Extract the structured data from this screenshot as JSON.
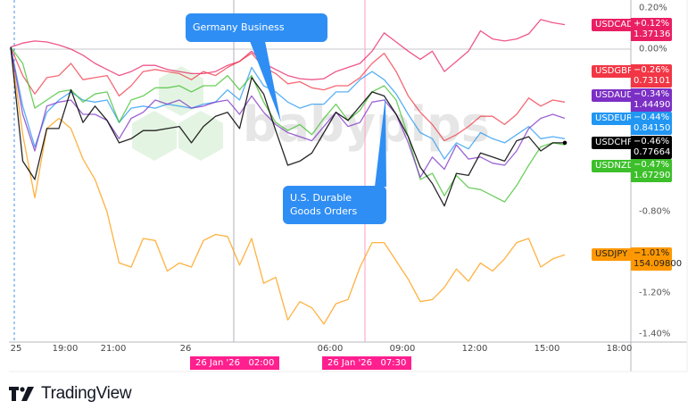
{
  "chart_data": {
    "type": "line",
    "title": "",
    "xlabel": "",
    "ylabel": "",
    "y_unit": "%",
    "ylim": [
      -1.48,
      0.24
    ],
    "grid": false,
    "y_ticks": [
      "0.20%",
      "0.00%",
      "-0.80%",
      "-1.20%",
      "-1.40%"
    ],
    "x_ticks": [
      "25",
      "19:00",
      "21:00",
      "26",
      "06:00",
      "09:00",
      "12:00",
      "15:00",
      "18:00"
    ],
    "x": [
      "16:45",
      "17:15",
      "17:45",
      "18:15",
      "18:45",
      "19:15",
      "19:45",
      "20:15",
      "20:45",
      "21:15",
      "21:45",
      "22:15",
      "22:45",
      "23:15",
      "23:45",
      "00:15",
      "00:45",
      "01:15",
      "01:45",
      "02:15",
      "02:45",
      "03:15",
      "03:45",
      "04:15",
      "04:45",
      "05:15",
      "05:45",
      "06:15",
      "06:45",
      "07:15",
      "07:45",
      "08:15",
      "08:45",
      "09:15",
      "09:45",
      "10:15",
      "10:45",
      "11:15",
      "11:45",
      "12:15",
      "12:45",
      "13:15",
      "13:45",
      "14:15",
      "14:45",
      "15:15",
      "15:45"
    ],
    "series": [
      {
        "name": "USDCAD",
        "color": "#e91e63",
        "change": "+0.12%",
        "price": "1.37136",
        "values": [
          0.01,
          0.03,
          0.04,
          0.035,
          0.02,
          0,
          -0.03,
          -0.07,
          -0.1,
          -0.13,
          -0.11,
          -0.08,
          -0.08,
          -0.1,
          -0.11,
          -0.12,
          -0.12,
          -0.11,
          -0.08,
          -0.06,
          -0.01,
          -0.07,
          -0.1,
          -0.13,
          -0.145,
          -0.15,
          -0.145,
          -0.11,
          -0.09,
          -0.07,
          -0.01,
          0.08,
          0.035,
          -0.01,
          -0.05,
          -0.01,
          -0.11,
          -0.06,
          -0.01,
          0.09,
          0.05,
          0.04,
          0.05,
          0.075,
          0.145,
          0.13,
          0.12
        ]
      },
      {
        "name": "USDGBP",
        "color": "#f23645",
        "change": "-0.26%",
        "price": "0.73101",
        "values": [
          0.01,
          -0.13,
          -0.22,
          -0.14,
          -0.13,
          -0.07,
          -0.15,
          -0.14,
          -0.13,
          -0.23,
          -0.18,
          -0.11,
          -0.1,
          -0.11,
          -0.12,
          -0.15,
          -0.11,
          -0.13,
          -0.09,
          -0.06,
          -0.02,
          -0.09,
          -0.12,
          -0.17,
          -0.16,
          -0.19,
          -0.2,
          -0.18,
          -0.18,
          -0.14,
          -0.07,
          -0.02,
          -0.11,
          -0.23,
          -0.31,
          -0.37,
          -0.45,
          -0.42,
          -0.38,
          -0.33,
          -0.33,
          -0.37,
          -0.32,
          -0.24,
          -0.28,
          -0.25,
          -0.26
        ]
      },
      {
        "name": "USDAUD",
        "color": "#7b2fc4",
        "change": "-0.34%",
        "price": "1.44490",
        "values": [
          0.01,
          -0.32,
          -0.5,
          -0.28,
          -0.26,
          -0.25,
          -0.32,
          -0.32,
          -0.35,
          -0.44,
          -0.34,
          -0.31,
          -0.25,
          -0.27,
          -0.25,
          -0.29,
          -0.28,
          -0.26,
          -0.25,
          -0.32,
          -0.23,
          -0.31,
          -0.37,
          -0.41,
          -0.43,
          -0.45,
          -0.38,
          -0.31,
          -0.38,
          -0.36,
          -0.26,
          -0.25,
          -0.32,
          -0.46,
          -0.63,
          -0.53,
          -0.59,
          -0.47,
          -0.54,
          -0.53,
          -0.56,
          -0.57,
          -0.5,
          -0.39,
          -0.34,
          -0.32,
          -0.34
        ]
      },
      {
        "name": "USDEUR",
        "color": "#2196f3",
        "change": "-0.44%",
        "price": "0.84150",
        "values": [
          0.01,
          -0.28,
          -0.48,
          -0.31,
          -0.25,
          -0.21,
          -0.25,
          -0.26,
          -0.25,
          -0.36,
          -0.29,
          -0.28,
          -0.29,
          -0.27,
          -0.28,
          -0.29,
          -0.27,
          -0.26,
          -0.2,
          -0.25,
          -0.09,
          -0.18,
          -0.21,
          -0.26,
          -0.29,
          -0.27,
          -0.27,
          -0.21,
          -0.21,
          -0.15,
          -0.11,
          -0.15,
          -0.22,
          -0.32,
          -0.41,
          -0.44,
          -0.54,
          -0.46,
          -0.49,
          -0.41,
          -0.44,
          -0.46,
          -0.42,
          -0.38,
          -0.44,
          -0.43,
          -0.44
        ]
      },
      {
        "name": "USDCHF",
        "color": "#000000",
        "change": "-0.46%",
        "price": "0.77664",
        "values": [
          0.01,
          -0.55,
          -0.64,
          -0.39,
          -0.39,
          -0.2,
          -0.36,
          -0.28,
          -0.35,
          -0.46,
          -0.44,
          -0.4,
          -0.4,
          -0.39,
          -0.38,
          -0.46,
          -0.38,
          -0.33,
          -0.31,
          -0.39,
          -0.14,
          -0.22,
          -0.4,
          -0.57,
          -0.55,
          -0.51,
          -0.41,
          -0.31,
          -0.35,
          -0.28,
          -0.21,
          -0.23,
          -0.32,
          -0.43,
          -0.58,
          -0.66,
          -0.77,
          -0.61,
          -0.62,
          -0.51,
          -0.53,
          -0.55,
          -0.45,
          -0.43,
          -0.5,
          -0.46,
          -0.46
        ]
      },
      {
        "name": "USDNZD",
        "color": "#3cbf2a",
        "change": "-0.47%",
        "price": "1.67290",
        "values": [
          0.01,
          -0.07,
          -0.29,
          -0.25,
          -0.21,
          -0.2,
          -0.26,
          -0.22,
          -0.21,
          -0.36,
          -0.25,
          -0.23,
          -0.19,
          -0.19,
          -0.18,
          -0.21,
          -0.18,
          -0.18,
          -0.13,
          -0.2,
          -0.13,
          -0.26,
          -0.36,
          -0.4,
          -0.37,
          -0.42,
          -0.34,
          -0.27,
          -0.35,
          -0.3,
          -0.21,
          -0.18,
          -0.25,
          -0.43,
          -0.64,
          -0.61,
          -0.72,
          -0.62,
          -0.68,
          -0.69,
          -0.72,
          -0.75,
          -0.67,
          -0.57,
          -0.48,
          -0.46,
          -0.47
        ]
      },
      {
        "name": "USDJPY",
        "color": "#ff9800",
        "change": "-1.01%",
        "price": "154.09800",
        "values": [
          0.01,
          -0.42,
          -0.73,
          -0.39,
          -0.34,
          -0.39,
          -0.54,
          -0.64,
          -0.8,
          -1.05,
          -1.07,
          -0.93,
          -0.94,
          -1.09,
          -1.05,
          -1.07,
          -0.94,
          -0.91,
          -0.92,
          -1.06,
          -0.93,
          -1.15,
          -1.12,
          -1.33,
          -1.24,
          -1.27,
          -1.35,
          -1.25,
          -1.23,
          -1.07,
          -0.95,
          -0.95,
          -1.04,
          -1.13,
          -1.24,
          -1.23,
          -1.17,
          -1.08,
          -1.14,
          -1.05,
          -1.09,
          -1.03,
          -0.95,
          -0.93,
          -1.07,
          -1.03,
          -1.01
        ]
      }
    ],
    "markers": [
      {
        "time_label": "26 Jan '26",
        "time": "02:00",
        "line_color": "#b0b0b8"
      },
      {
        "time_label": "26 Jan '26",
        "time": "07:30",
        "line_color": "#ff9ec8"
      }
    ],
    "annotations": [
      "Germany Business Climate",
      "U.S. Durable Goods Orders"
    ]
  },
  "watermark": "babypips",
  "brand": "TradingView",
  "callout_color": "#2f8ef4"
}
